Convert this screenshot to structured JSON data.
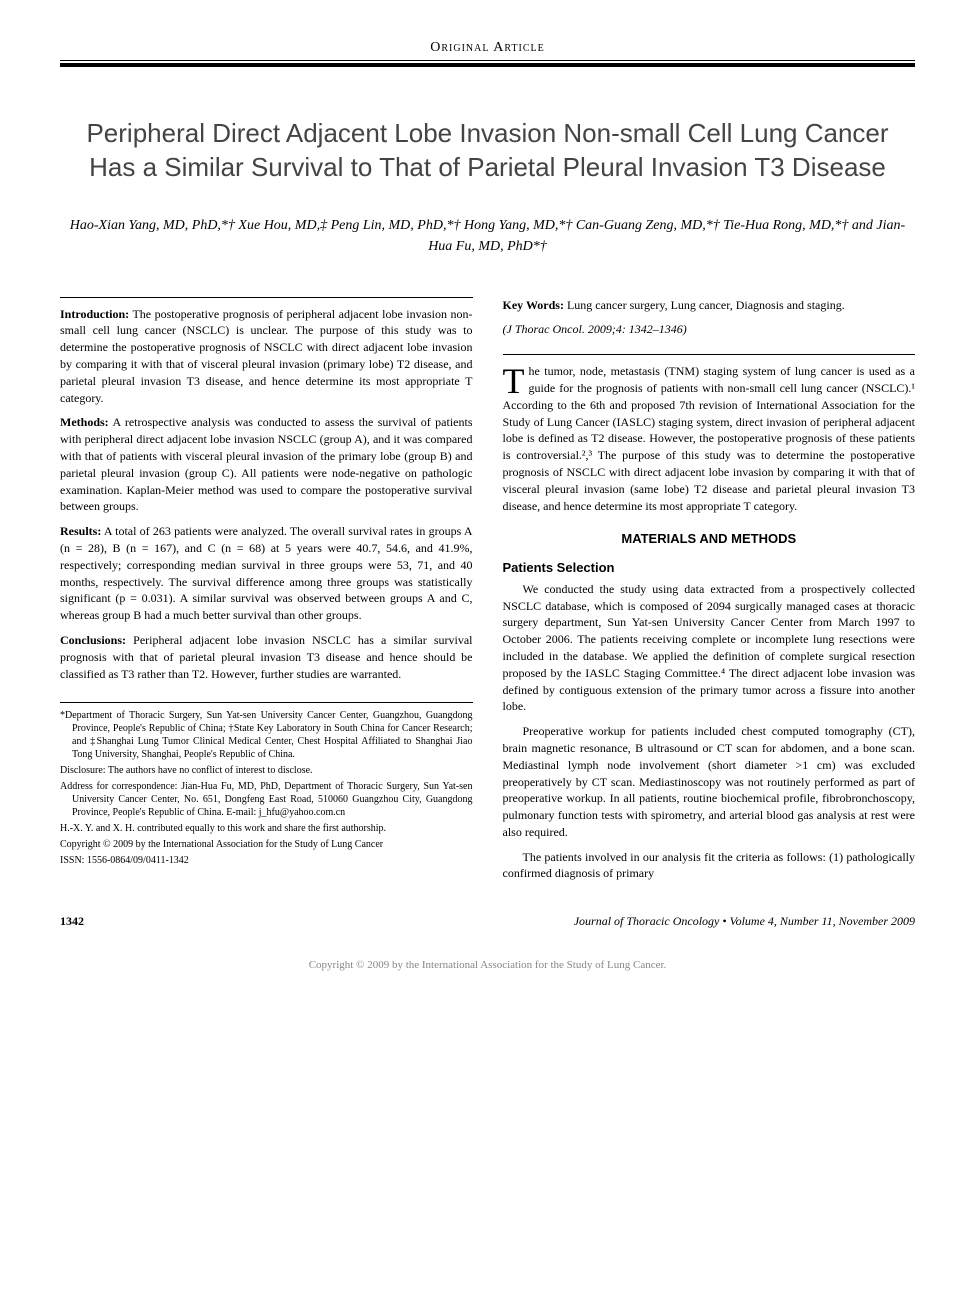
{
  "header": {
    "article_type": "Original Article"
  },
  "title": "Peripheral Direct Adjacent Lobe Invasion Non-small Cell Lung Cancer Has a Similar Survival to That of Parietal Pleural Invasion T3 Disease",
  "authors": "Hao-Xian Yang, MD, PhD,*† Xue Hou, MD,‡ Peng Lin, MD, PhD,*† Hong Yang, MD,*† Can-Guang Zeng, MD,*† Tie-Hua Rong, MD,*† and Jian-Hua Fu, MD, PhD*†",
  "abstract": {
    "introduction_label": "Introduction:",
    "introduction": "The postoperative prognosis of peripheral adjacent lobe invasion non-small cell lung cancer (NSCLC) is unclear. The purpose of this study was to determine the postoperative prognosis of NSCLC with direct adjacent lobe invasion by comparing it with that of visceral pleural invasion (primary lobe) T2 disease, and parietal pleural invasion T3 disease, and hence determine its most appropriate T category.",
    "methods_label": "Methods:",
    "methods": "A retrospective analysis was conducted to assess the survival of patients with peripheral direct adjacent lobe invasion NSCLC (group A), and it was compared with that of patients with visceral pleural invasion of the primary lobe (group B) and parietal pleural invasion (group C). All patients were node-negative on pathologic examination. Kaplan-Meier method was used to compare the postoperative survival between groups.",
    "results_label": "Results:",
    "results": "A total of 263 patients were analyzed. The overall survival rates in groups A (n = 28), B (n = 167), and C (n = 68) at 5 years were 40.7, 54.6, and 41.9%, respectively; corresponding median survival in three groups were 53, 71, and 40 months, respectively. The survival difference among three groups was statistically significant (p = 0.031). A similar survival was observed between groups A and C, whereas group B had a much better survival than other groups.",
    "conclusions_label": "Conclusions:",
    "conclusions": "Peripheral adjacent lobe invasion NSCLC has a similar survival prognosis with that of parietal pleural invasion T3 disease and hence should be classified as T3 rather than T2. However, further studies are warranted."
  },
  "keywords": {
    "label": "Key Words:",
    "text": "Lung cancer surgery, Lung cancer, Diagnosis and staging."
  },
  "citation": "(J Thorac Oncol. 2009;4: 1342–1346)",
  "body": {
    "intro_first": "he tumor, node, metastasis (TNM) staging system of lung cancer is used as a guide for the prognosis of patients with non-small cell lung cancer (NSCLC).¹ According to the 6th and proposed 7th revision of International Association for the Study of Lung Cancer (IASLC) staging system, direct invasion of peripheral adjacent lobe is defined as T2 disease. However, the postoperative prognosis of these patients is controversial.²,³ The purpose of this study was to determine the postoperative prognosis of NSCLC with direct adjacent lobe invasion by comparing it with that of visceral pleural invasion (same lobe) T2 disease and parietal pleural invasion T3 disease, and hence determine its most appropriate T category.",
    "dropcap": "T",
    "materials_heading": "MATERIALS AND METHODS",
    "patients_heading": "Patients Selection",
    "patients_p1": "We conducted the study using data extracted from a prospectively collected NSCLC database, which is composed of 2094 surgically managed cases at thoracic surgery department, Sun Yat-sen University Cancer Center from March 1997 to October 2006. The patients receiving complete or incomplete lung resections were included in the database. We applied the definition of complete surgical resection proposed by the IASLC Staging Committee.⁴ The direct adjacent lobe invasion was defined by contiguous extension of the primary tumor across a fissure into another lobe.",
    "patients_p2": "Preoperative workup for patients included chest computed tomography (CT), brain magnetic resonance, B ultrasound or CT scan for abdomen, and a bone scan. Mediastinal lymph node involvement (short diameter >1 cm) was excluded preoperatively by CT scan. Mediastinoscopy was not routinely performed as part of preoperative workup. In all patients, routine biochemical profile, fibrobronchoscopy, pulmonary function tests with spirometry, and arterial blood gas analysis at rest were also required.",
    "patients_p3": "The patients involved in our analysis fit the criteria as follows: (1) pathologically confirmed diagnosis of primary"
  },
  "footnotes": {
    "affiliation": "*Department of Thoracic Surgery, Sun Yat-sen University Cancer Center, Guangzhou, Guangdong Province, People's Republic of China; †State Key Laboratory in South China for Cancer Research; and ‡Shanghai Lung Tumor Clinical Medical Center, Chest Hospital Affiliated to Shanghai Jiao Tong University, Shanghai, People's Republic of China.",
    "disclosure": "Disclosure: The authors have no conflict of interest to disclose.",
    "correspondence": "Address for correspondence: Jian-Hua Fu, MD, PhD, Department of Thoracic Surgery, Sun Yat-sen University Cancer Center, No. 651, Dongfeng East Road, 510060 Guangzhou City, Guangdong Province, People's Republic of China. E-mail: j_hfu@yahoo.com.cn",
    "contribution": "H.-X. Y. and X. H. contributed equally to this work and share the first authorship.",
    "copyright": "Copyright © 2009 by the International Association for the Study of Lung Cancer",
    "issn": "ISSN: 1556-0864/09/0411-1342"
  },
  "footer": {
    "page_number": "1342",
    "journal": "Journal of Thoracic Oncology • Volume 4, Number 11, November 2009"
  },
  "bottom_copyright": "Copyright © 2009 by the International Association for the Study of Lung Cancer."
}
